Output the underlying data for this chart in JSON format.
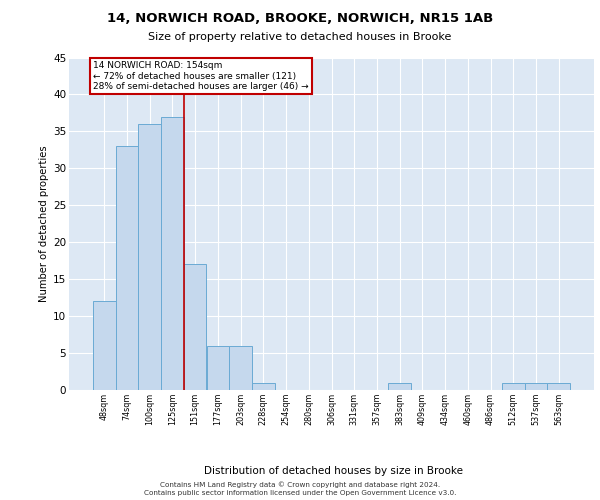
{
  "title": "14, NORWICH ROAD, BROOKE, NORWICH, NR15 1AB",
  "subtitle": "Size of property relative to detached houses in Brooke",
  "xlabel": "Distribution of detached houses by size in Brooke",
  "ylabel": "Number of detached properties",
  "categories": [
    "48sqm",
    "74sqm",
    "100sqm",
    "125sqm",
    "151sqm",
    "177sqm",
    "203sqm",
    "228sqm",
    "254sqm",
    "280sqm",
    "306sqm",
    "331sqm",
    "357sqm",
    "383sqm",
    "409sqm",
    "434sqm",
    "460sqm",
    "486sqm",
    "512sqm",
    "537sqm",
    "563sqm"
  ],
  "values": [
    12,
    33,
    36,
    37,
    17,
    6,
    6,
    1,
    0,
    0,
    0,
    0,
    0,
    1,
    0,
    0,
    0,
    0,
    1,
    1,
    1
  ],
  "bar_color": "#c5d8ed",
  "bar_edge_color": "#6aaad4",
  "highlight_color": "#c00000",
  "highlight_index": 4,
  "annotation_line1": "14 NORWICH ROAD: 154sqm",
  "annotation_line2": "← 72% of detached houses are smaller (121)",
  "annotation_line3": "28% of semi-detached houses are larger (46) →",
  "ylim": [
    0,
    45
  ],
  "yticks": [
    0,
    5,
    10,
    15,
    20,
    25,
    30,
    35,
    40,
    45
  ],
  "background_color": "#dde8f4",
  "footer_line1": "Contains HM Land Registry data © Crown copyright and database right 2024.",
  "footer_line2": "Contains public sector information licensed under the Open Government Licence v3.0."
}
